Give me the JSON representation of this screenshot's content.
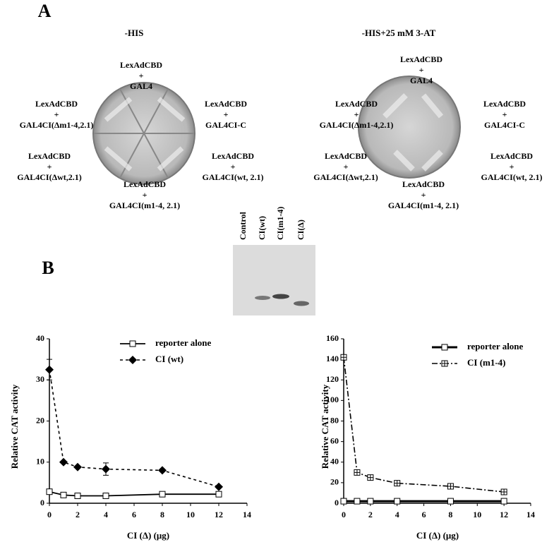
{
  "panel_a": {
    "letter": "A",
    "plates": [
      {
        "title": "-HIS",
        "labels": [
          [
            "LexAdCBD",
            "+",
            "GAL4"
          ],
          [
            "LexAdCBD",
            "+",
            "GAL4CI(Δm1-4,2.1)"
          ],
          [
            "LexAdCBD",
            "+",
            "GAL4CI-C"
          ],
          [
            "LexAdCBD",
            "+",
            "GAL4CI(Δwt,2.1)"
          ],
          [
            "LexAdCBD",
            "+",
            "GAL4CI(wt, 2.1)"
          ],
          [
            "LexAdCBD",
            "+",
            "GAL4CI(m1-4, 2.1)"
          ]
        ]
      },
      {
        "title": "-HIS+25 mM 3-AT",
        "labels": [
          [
            "LexAdCBD",
            "+",
            "GAL4"
          ],
          [
            "LexAdCBD",
            "+",
            "GAL4CI(Δm1-4,2.1)"
          ],
          [
            "LexAdCBD",
            "+",
            "GAL4CI-C"
          ],
          [
            "LexAdCBD",
            "+",
            "GAL4CI(Δwt,2.1)"
          ],
          [
            "LexAdCBD",
            "+",
            "GAL4CI(wt, 2.1)"
          ],
          [
            "LexAdCBD",
            "+",
            "GAL4CI(m1-4, 2.1)"
          ]
        ]
      }
    ]
  },
  "blot": {
    "lanes": [
      "Control",
      "CI(wt)",
      "CI(m1-4)",
      "CI(Δ)"
    ]
  },
  "panel_b": {
    "letter": "B"
  },
  "chart_data": [
    {
      "type": "line",
      "xlabel": "CI (Δ) (μg)",
      "ylabel": "Relative CAT activity",
      "x": [
        0,
        1,
        2,
        4,
        8,
        12
      ],
      "xlim": [
        0,
        14
      ],
      "xticks": [
        0,
        2,
        4,
        6,
        8,
        10,
        12,
        14
      ],
      "ylim": [
        0,
        40
      ],
      "yticks": [
        0,
        10,
        20,
        30,
        40
      ],
      "legend": "top",
      "series": [
        {
          "name": "reporter alone",
          "color": "#000000",
          "marker": "square-open",
          "dash": "none",
          "width": 1.8,
          "values": [
            2.8,
            2.0,
            1.8,
            1.8,
            2.2,
            2.2
          ]
        },
        {
          "name": "CI (wt)",
          "color": "#000000",
          "marker": "diamond",
          "dash": "4,4",
          "width": 1.6,
          "values": [
            32.5,
            10,
            8.8,
            8.3,
            8,
            4
          ],
          "errors": [
            2.5,
            null,
            null,
            1.5,
            null,
            null
          ]
        }
      ]
    },
    {
      "type": "line",
      "xlabel": "CI (Δ) (μg)",
      "ylabel": "Relative CAT activity",
      "x": [
        0,
        1,
        2,
        4,
        8,
        12
      ],
      "xlim": [
        0,
        14
      ],
      "xticks": [
        0,
        2,
        4,
        6,
        8,
        10,
        12,
        14
      ],
      "ylim": [
        0,
        160
      ],
      "yticks": [
        0,
        20,
        40,
        60,
        80,
        100,
        120,
        140,
        160
      ],
      "legend": "top",
      "series": [
        {
          "name": "reporter alone",
          "color": "#000000",
          "marker": "square-open",
          "dash": "none",
          "width": 3,
          "values": [
            2,
            2,
            2,
            2,
            2,
            2
          ]
        },
        {
          "name": "CI (m1-4)",
          "color": "#000000",
          "marker": "square-plus",
          "dash": "8,3,2,3",
          "width": 1.6,
          "values": [
            142,
            30,
            25,
            19.5,
            16.5,
            11
          ]
        }
      ]
    }
  ]
}
